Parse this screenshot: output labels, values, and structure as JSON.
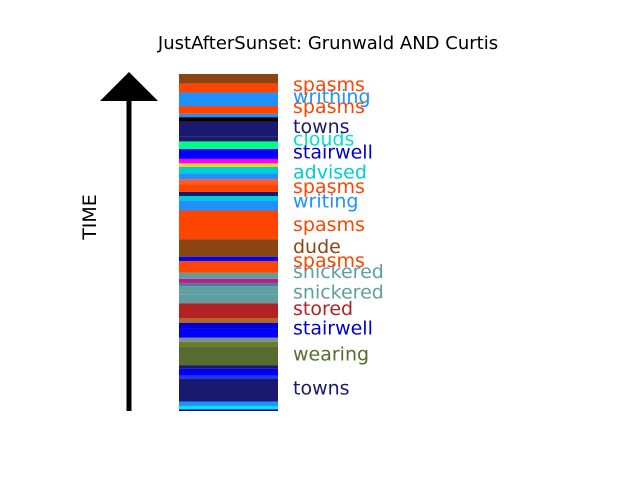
{
  "chart_data": {
    "type": "bar",
    "title": "JustAfterSunset: Grunwald AND Curtis",
    "ylabel": "TIME",
    "ylim": [
      0,
      1
    ],
    "bands": [
      {
        "start": 0.0,
        "end": 0.005,
        "color": "#000080"
      },
      {
        "start": 0.005,
        "end": 0.015,
        "color": "#00e5ff"
      },
      {
        "start": 0.015,
        "end": 0.028,
        "color": "#1e90ff"
      },
      {
        "start": 0.028,
        "end": 0.095,
        "color": "#191970"
      },
      {
        "start": 0.095,
        "end": 0.105,
        "color": "#1e3ae0"
      },
      {
        "start": 0.105,
        "end": 0.125,
        "color": "#0000ff"
      },
      {
        "start": 0.125,
        "end": 0.135,
        "color": "#191970"
      },
      {
        "start": 0.135,
        "end": 0.19,
        "color": "#556b2f"
      },
      {
        "start": 0.19,
        "end": 0.205,
        "color": "#6a7c2c"
      },
      {
        "start": 0.205,
        "end": 0.218,
        "color": "#7f8c8d"
      },
      {
        "start": 0.218,
        "end": 0.245,
        "color": "#0000ff"
      },
      {
        "start": 0.245,
        "end": 0.262,
        "color": "#0000cd"
      },
      {
        "start": 0.262,
        "end": 0.275,
        "color": "#b5651d"
      },
      {
        "start": 0.275,
        "end": 0.32,
        "color": "#b22222"
      },
      {
        "start": 0.32,
        "end": 0.345,
        "color": "#5f9ea0"
      },
      {
        "start": 0.345,
        "end": 0.37,
        "color": "#5fa0a0"
      },
      {
        "start": 0.37,
        "end": 0.38,
        "color": "#4b7ca0"
      },
      {
        "start": 0.38,
        "end": 0.392,
        "color": "#c71585"
      },
      {
        "start": 0.392,
        "end": 0.41,
        "color": "#5f9ea0"
      },
      {
        "start": 0.41,
        "end": 0.445,
        "color": "#ff4500"
      },
      {
        "start": 0.445,
        "end": 0.458,
        "color": "#0000ff"
      },
      {
        "start": 0.458,
        "end": 0.51,
        "color": "#8b4513"
      },
      {
        "start": 0.51,
        "end": 0.595,
        "color": "#ff4500"
      },
      {
        "start": 0.595,
        "end": 0.625,
        "color": "#1e90ff"
      },
      {
        "start": 0.625,
        "end": 0.638,
        "color": "#00ced1"
      },
      {
        "start": 0.638,
        "end": 0.65,
        "color": "#191970"
      },
      {
        "start": 0.65,
        "end": 0.672,
        "color": "#ff4500"
      },
      {
        "start": 0.672,
        "end": 0.688,
        "color": "#ff5a2a"
      },
      {
        "start": 0.688,
        "end": 0.705,
        "color": "#1e90ff"
      },
      {
        "start": 0.705,
        "end": 0.725,
        "color": "#00ced1"
      },
      {
        "start": 0.725,
        "end": 0.735,
        "color": "#ffd700"
      },
      {
        "start": 0.735,
        "end": 0.748,
        "color": "#ff00ff"
      },
      {
        "start": 0.748,
        "end": 0.778,
        "color": "#0000ff"
      },
      {
        "start": 0.778,
        "end": 0.8,
        "color": "#00ff7f"
      },
      {
        "start": 0.8,
        "end": 0.815,
        "color": "#191970"
      },
      {
        "start": 0.815,
        "end": 0.858,
        "color": "#191970"
      },
      {
        "start": 0.858,
        "end": 0.872,
        "color": "#000000"
      },
      {
        "start": 0.872,
        "end": 0.882,
        "color": "#1e90ff"
      },
      {
        "start": 0.882,
        "end": 0.905,
        "color": "#ff4500"
      },
      {
        "start": 0.905,
        "end": 0.945,
        "color": "#1e90ff"
      },
      {
        "start": 0.945,
        "end": 0.972,
        "color": "#ff4500"
      },
      {
        "start": 0.972,
        "end": 1.0,
        "color": "#8b4513"
      }
    ],
    "labels": [
      {
        "text": "towns",
        "position": 0.07,
        "color": "#191970"
      },
      {
        "text": "wearing",
        "position": 0.17,
        "color": "#556b2f"
      },
      {
        "text": "stairwell",
        "position": 0.248,
        "color": "#0000cd"
      },
      {
        "text": "stored",
        "position": 0.305,
        "color": "#b22222"
      },
      {
        "text": "snickered",
        "position": 0.355,
        "color": "#5f9ea0"
      },
      {
        "text": "snickered",
        "position": 0.415,
        "color": "#5f9ea0"
      },
      {
        "text": "spasms",
        "position": 0.448,
        "color": "#ff4500"
      },
      {
        "text": "dude",
        "position": 0.49,
        "color": "#8b4513"
      },
      {
        "text": "spasms",
        "position": 0.555,
        "color": "#ff4500"
      },
      {
        "text": "writing",
        "position": 0.625,
        "color": "#1e90ff"
      },
      {
        "text": "spasms",
        "position": 0.668,
        "color": "#ff4500"
      },
      {
        "text": "advised",
        "position": 0.71,
        "color": "#00ced1"
      },
      {
        "text": "stairwell",
        "position": 0.77,
        "color": "#0000cd"
      },
      {
        "text": "clouds",
        "position": 0.808,
        "color": "#00e5c5"
      },
      {
        "text": "towns",
        "position": 0.845,
        "color": "#191970"
      },
      {
        "text": "spasms",
        "position": 0.905,
        "color": "#ff4500"
      },
      {
        "text": "writhing",
        "position": 0.935,
        "color": "#1e90ff"
      },
      {
        "text": "spasms",
        "position": 0.97,
        "color": "#ff4500"
      }
    ],
    "legend": "none",
    "grid": false
  }
}
